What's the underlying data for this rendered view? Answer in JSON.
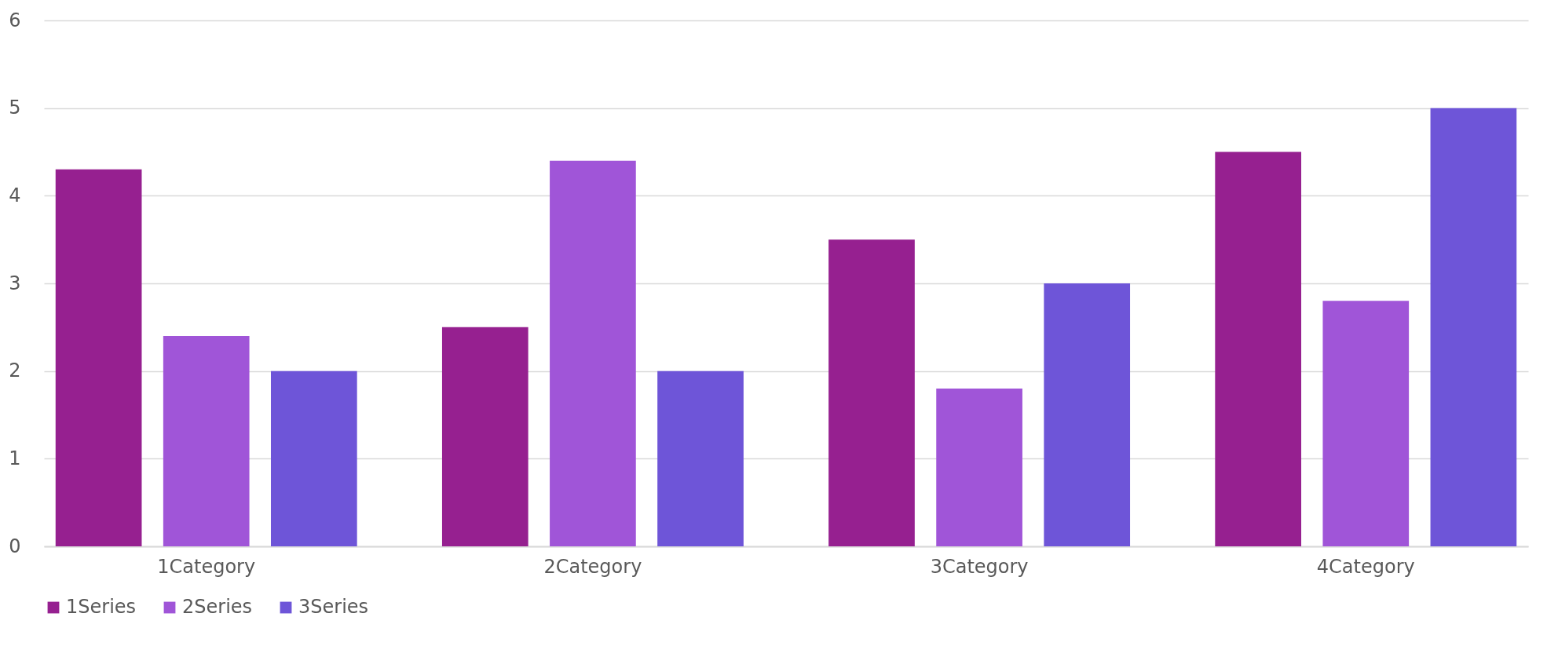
{
  "chart_data": {
    "type": "bar",
    "categories": [
      "1Category",
      "2Category",
      "3Category",
      "4Category"
    ],
    "series": [
      {
        "name": "1Series",
        "color": "#962090",
        "values": [
          4.3,
          2.5,
          3.5,
          4.5
        ]
      },
      {
        "name": "2Series",
        "color": "#a055d8",
        "values": [
          2.4,
          4.4,
          1.8,
          2.8
        ]
      },
      {
        "name": "3Series",
        "color": "#6e55d8",
        "values": [
          2.0,
          2.0,
          3.0,
          5.0
        ]
      }
    ],
    "ylim": [
      0,
      6
    ],
    "yticks": [
      0,
      1,
      2,
      3,
      4,
      5,
      6
    ],
    "grid": "y",
    "legend": "bottom"
  }
}
